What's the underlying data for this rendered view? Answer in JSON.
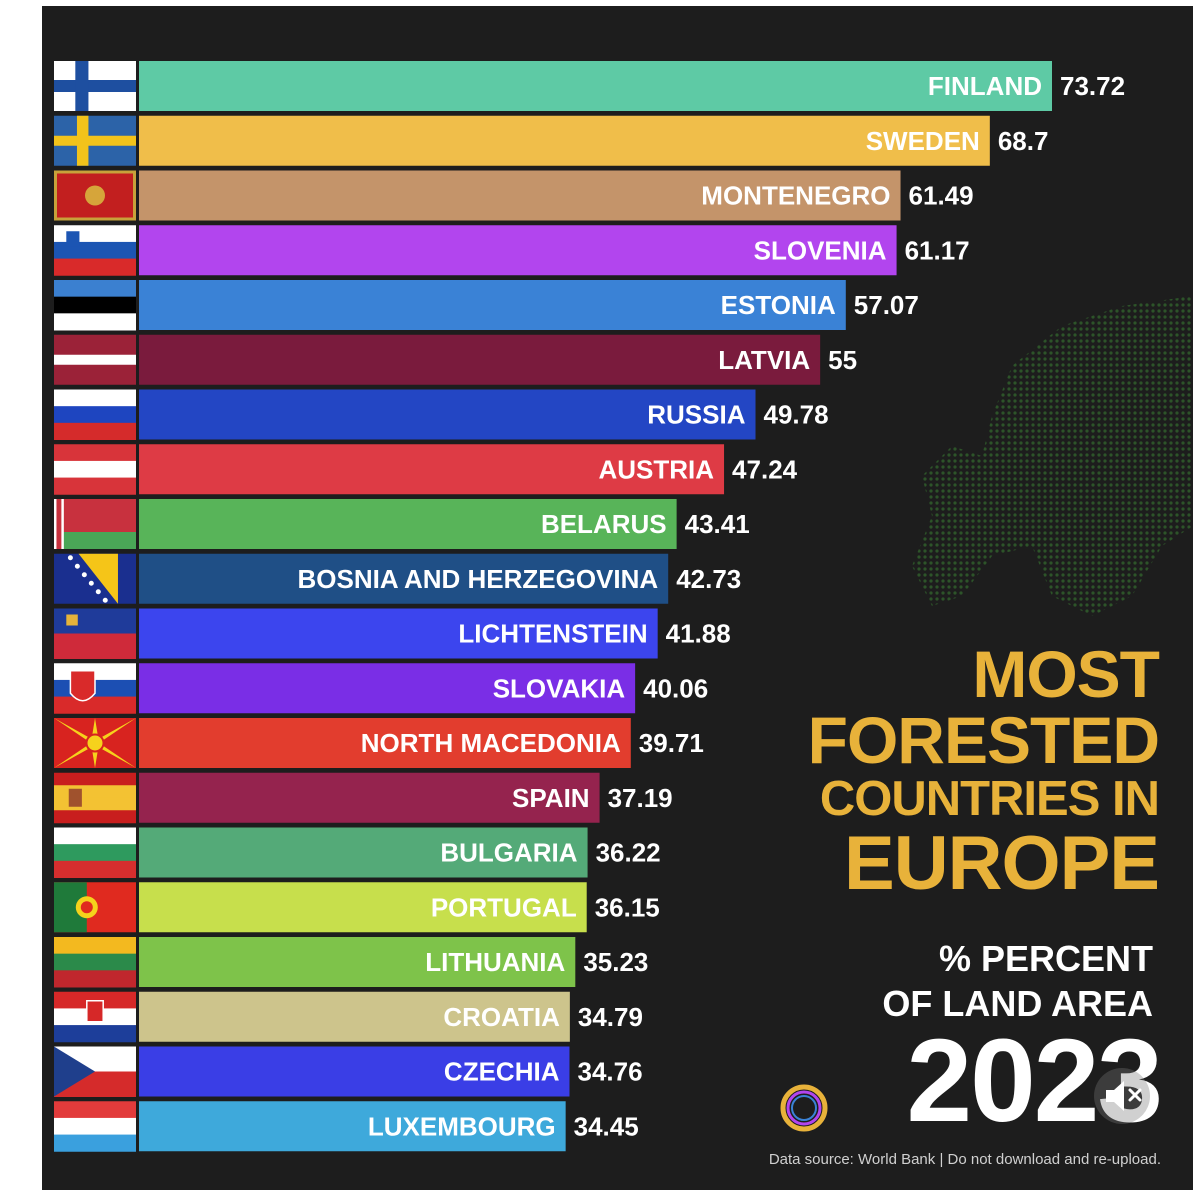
{
  "chart_data": {
    "type": "bar",
    "orientation": "horizontal",
    "title": "MOST FORESTED COUNTRIES IN EUROPE",
    "subtitle": "% PERCENT OF LAND AREA",
    "year": "2023",
    "categories": [
      "FINLAND",
      "SWEDEN",
      "MONTENEGRO",
      "SLOVENIA",
      "ESTONIA",
      "LATVIA",
      "RUSSIA",
      "AUSTRIA",
      "BELARUS",
      "BOSNIA AND HERZEGOVINA",
      "LICHTENSTEIN",
      "SLOVAKIA",
      "NORTH MACEDONIA",
      "SPAIN",
      "BULGARIA",
      "PORTUGAL",
      "LITHUANIA",
      "CROATIA",
      "CZECHIA",
      "LUXEMBOURG"
    ],
    "values": [
      73.72,
      68.7,
      61.49,
      61.17,
      57.07,
      55,
      49.78,
      47.24,
      43.41,
      42.73,
      41.88,
      40.06,
      39.71,
      37.19,
      36.22,
      36.15,
      35.23,
      34.79,
      34.76,
      34.45
    ],
    "value_labels": [
      "73.72",
      "68.7",
      "61.49",
      "61.17",
      "57.07",
      "55",
      "49.78",
      "47.24",
      "43.41",
      "42.73",
      "41.88",
      "40.06",
      "39.71",
      "37.19",
      "36.22",
      "36.15",
      "35.23",
      "34.79",
      "34.76",
      "34.45"
    ],
    "colors": [
      "#5ecaa5",
      "#f0be4a",
      "#c4946a",
      "#b245ee",
      "#3a82d6",
      "#7a1b3d",
      "#2346c4",
      "#de3b45",
      "#58b459",
      "#1f4f86",
      "#3c45ee",
      "#7a2ee6",
      "#e23d2e",
      "#95234e",
      "#54aa78",
      "#c7df4c",
      "#7ec34a",
      "#cdc48c",
      "#3a3ee6",
      "#3ea9db"
    ],
    "flags": [
      "finland",
      "sweden",
      "montenegro",
      "slovenia",
      "estonia",
      "latvia",
      "russia",
      "austria",
      "belarus",
      "bosnia",
      "liechtenstein",
      "slovakia",
      "north-macedonia",
      "spain",
      "bulgaria",
      "portugal",
      "lithuania",
      "croatia",
      "czechia",
      "luxembourg"
    ],
    "xlim": [
      0,
      73.72
    ],
    "grid": false,
    "legend": "none"
  },
  "title_lines": [
    "MOST",
    "FORESTED",
    "COUNTRIES IN",
    "EUROPE"
  ],
  "subtitle_lines": [
    "% PERCENT",
    "OF LAND AREA"
  ],
  "year": "2023",
  "source": "Data source: World Bank  |   Do not download and re-upload.",
  "accent_color": "#e8b23a",
  "background_color": "#1d1d1d"
}
